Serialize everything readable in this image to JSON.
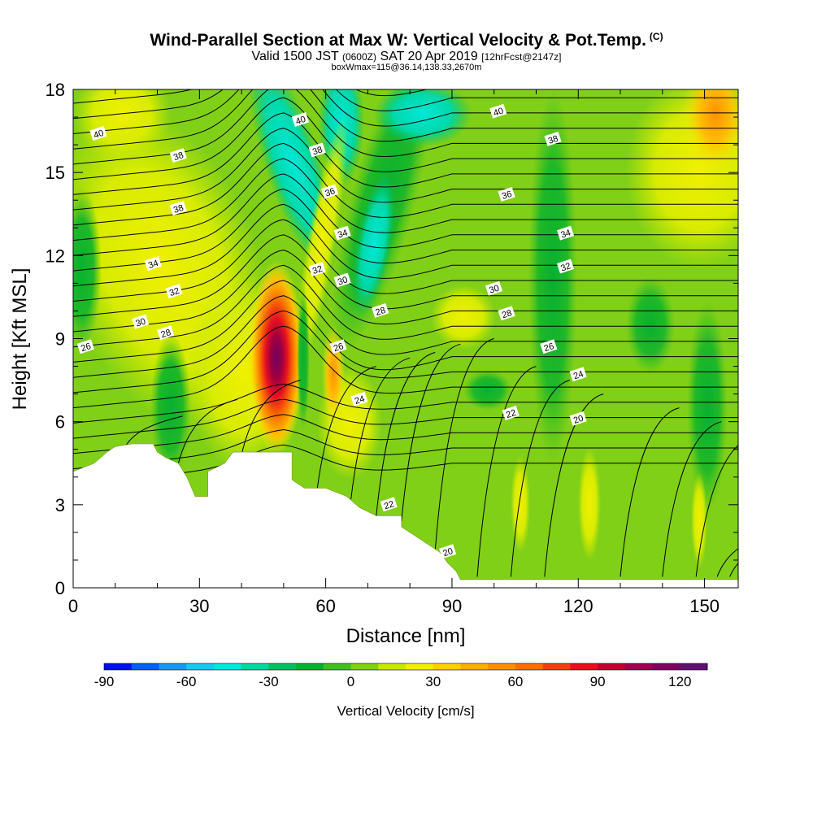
{
  "header": {
    "title": "Wind-Parallel Section at Max W: Vertical Velocity & Pot.Temp.",
    "copyright": "(C)",
    "valid_prefix": "Valid 1500 JST",
    "valid_utc": "(0600Z)",
    "valid_date": "SAT 20 Apr 2019",
    "forecast": "[12hrFcst@2147z]",
    "box_info": "boxWmax=115@36.14,138.33,2670m"
  },
  "chart_data": {
    "type": "heatmap",
    "title": "Wind-Parallel Section at Max W: Vertical Velocity & Pot.Temp.",
    "xlabel": "Distance [nm]",
    "ylabel": "Height [Kft MSL]",
    "xlim": [
      0,
      158
    ],
    "ylim": [
      0,
      18
    ],
    "x_ticks": [
      0,
      30,
      60,
      90,
      120,
      150
    ],
    "y_ticks": [
      0,
      3,
      6,
      9,
      12,
      15,
      18
    ],
    "x_tick_labels": [
      "0",
      "30",
      "60",
      "90",
      "120",
      "150"
    ],
    "y_tick_labels": [
      "0",
      "3",
      "6",
      "9",
      "12",
      "15",
      "18"
    ],
    "colorbar": {
      "title": "Vertical Velocity [cm/s]",
      "min": -90,
      "max": 130,
      "step": 10,
      "tick_values": [
        -90,
        -60,
        -30,
        0,
        30,
        60,
        90,
        120
      ],
      "tick_labels": [
        "-90",
        "-60",
        "-30",
        "0",
        "30",
        "60",
        "90",
        "120"
      ],
      "colors": [
        "#0010e8",
        "#0060f0",
        "#1898f0",
        "#18c8f0",
        "#00e8d8",
        "#00d8a0",
        "#00c060",
        "#08b030",
        "#40c020",
        "#80d018",
        "#c8e800",
        "#f0f000",
        "#ffd000",
        "#ffb000",
        "#ff9000",
        "#f87000",
        "#f04010",
        "#e81020",
        "#c00030",
        "#a00050",
        "#800060",
        "#601070"
      ]
    },
    "terrain_top_kft": [
      [
        0,
        4.2
      ],
      [
        5,
        4.5
      ],
      [
        8,
        4.9
      ],
      [
        10,
        5.1
      ],
      [
        14,
        5.2
      ],
      [
        19,
        5.2
      ],
      [
        20,
        4.9
      ],
      [
        22,
        4.7
      ],
      [
        25,
        4.5
      ],
      [
        27,
        4.0
      ],
      [
        29,
        3.3
      ],
      [
        32,
        3.3
      ],
      [
        32,
        4.2
      ],
      [
        36,
        4.5
      ],
      [
        38,
        4.9
      ],
      [
        42,
        4.9
      ],
      [
        48,
        4.9
      ],
      [
        52,
        4.9
      ],
      [
        52,
        3.9
      ],
      [
        55,
        3.6
      ],
      [
        60,
        3.6
      ],
      [
        65,
        3.3
      ],
      [
        68,
        2.9
      ],
      [
        72,
        2.6
      ],
      [
        78,
        2.6
      ],
      [
        78,
        2.2
      ],
      [
        81,
        1.9
      ],
      [
        84,
        1.6
      ],
      [
        87,
        1.3
      ],
      [
        89,
        0.9
      ],
      [
        91,
        0.6
      ],
      [
        92,
        0.3
      ],
      [
        94,
        0.3
      ],
      [
        158,
        0.3
      ]
    ],
    "w_features": [
      {
        "name": "updraft-core",
        "x": 48.5,
        "y": 8.5,
        "max_w": 115
      },
      {
        "name": "downdraft-band",
        "x": 56,
        "y": 15.5,
        "min_w": -45
      },
      {
        "name": "downdraft-band-2",
        "x": 78,
        "y": 16.5,
        "min_w": -35
      },
      {
        "name": "warm-upper-right",
        "x": 152,
        "y": 16,
        "max_w": 60
      }
    ],
    "theta_labels": [
      {
        "label": "40",
        "x": 6,
        "y": 16.4
      },
      {
        "label": "38",
        "x": 25,
        "y": 15.6
      },
      {
        "label": "38",
        "x": 25,
        "y": 13.7
      },
      {
        "label": "34",
        "x": 19,
        "y": 11.7
      },
      {
        "label": "32",
        "x": 24,
        "y": 10.7
      },
      {
        "label": "30",
        "x": 16,
        "y": 9.6
      },
      {
        "label": "28",
        "x": 22,
        "y": 9.2
      },
      {
        "label": "26",
        "x": 3,
        "y": 8.7
      },
      {
        "label": "40",
        "x": 54,
        "y": 16.9
      },
      {
        "label": "38",
        "x": 58,
        "y": 15.8
      },
      {
        "label": "36",
        "x": 61,
        "y": 14.3
      },
      {
        "label": "34",
        "x": 64,
        "y": 12.8
      },
      {
        "label": "32",
        "x": 58,
        "y": 11.5
      },
      {
        "label": "30",
        "x": 64,
        "y": 11.1
      },
      {
        "label": "28",
        "x": 73,
        "y": 10.0
      },
      {
        "label": "26",
        "x": 63,
        "y": 8.7
      },
      {
        "label": "24",
        "x": 68,
        "y": 6.8
      },
      {
        "label": "22",
        "x": 75,
        "y": 3.0
      },
      {
        "label": "20",
        "x": 89,
        "y": 1.3
      },
      {
        "label": "40",
        "x": 101,
        "y": 17.2
      },
      {
        "label": "38",
        "x": 114,
        "y": 16.2
      },
      {
        "label": "36",
        "x": 103,
        "y": 14.2
      },
      {
        "label": "34",
        "x": 117,
        "y": 12.8
      },
      {
        "label": "32",
        "x": 117,
        "y": 11.6
      },
      {
        "label": "30",
        "x": 100,
        "y": 10.8
      },
      {
        "label": "28",
        "x": 103,
        "y": 9.9
      },
      {
        "label": "26",
        "x": 113,
        "y": 8.7
      },
      {
        "label": "24",
        "x": 120,
        "y": 7.7
      },
      {
        "label": "22",
        "x": 104,
        "y": 6.3
      },
      {
        "label": "20",
        "x": 120,
        "y": 6.1
      }
    ]
  }
}
